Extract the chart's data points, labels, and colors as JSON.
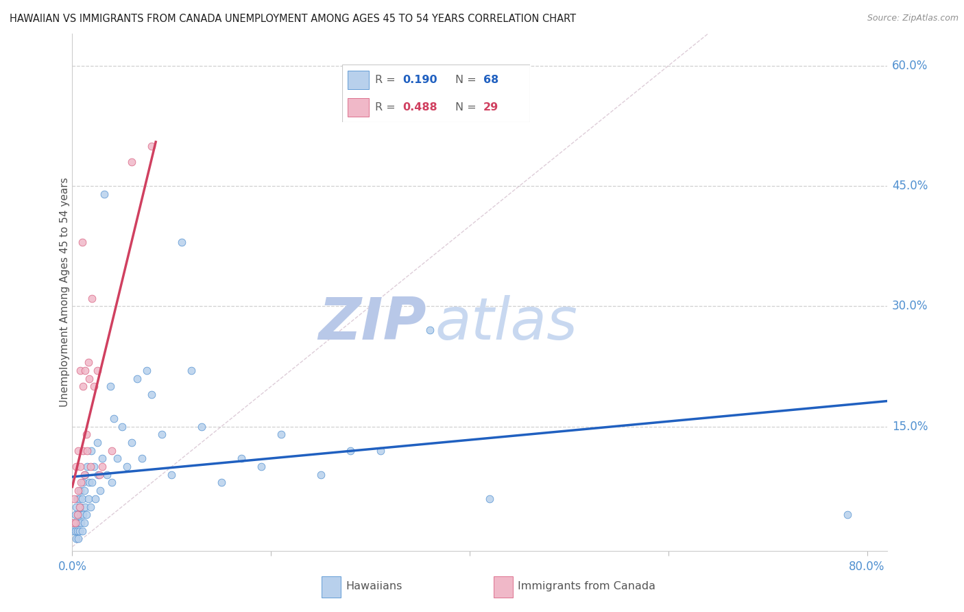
{
  "title": "HAWAIIAN VS IMMIGRANTS FROM CANADA UNEMPLOYMENT AMONG AGES 45 TO 54 YEARS CORRELATION CHART",
  "source": "Source: ZipAtlas.com",
  "ylabel": "Unemployment Among Ages 45 to 54 years",
  "xlim": [
    0.0,
    0.82
  ],
  "ylim": [
    -0.005,
    0.64
  ],
  "x_ticks": [
    0.0,
    0.2,
    0.4,
    0.6,
    0.8
  ],
  "x_tick_labels": [
    "0.0%",
    "",
    "",
    "",
    "80.0%"
  ],
  "y_ticks": [
    0.15,
    0.3,
    0.45,
    0.6
  ],
  "y_tick_labels": [
    "15.0%",
    "30.0%",
    "45.0%",
    "60.0%"
  ],
  "color_hawaiian_fill": "#b8d0ec",
  "color_hawaiian_edge": "#5090d0",
  "color_canada_fill": "#f0b8c8",
  "color_canada_edge": "#d86080",
  "color_trendline_hawaiian": "#2060c0",
  "color_trendline_canada": "#d04060",
  "color_diagonal": "#d0b8c8",
  "color_grid": "#c8c8c8",
  "color_axis_text": "#5090d0",
  "color_title": "#202020",
  "color_source": "#909090",
  "color_ylabel": "#505050",
  "color_watermark": "#ccd8f0",
  "watermark_zip": "ZIP",
  "watermark_atlas": "atlas",
  "legend_R_blue": "0.190",
  "legend_N_blue": "68",
  "legend_R_pink": "0.488",
  "legend_N_pink": "29",
  "hawaiian_x": [
    0.001,
    0.002,
    0.003,
    0.003,
    0.004,
    0.004,
    0.004,
    0.005,
    0.005,
    0.005,
    0.006,
    0.006,
    0.007,
    0.007,
    0.007,
    0.008,
    0.008,
    0.009,
    0.009,
    0.01,
    0.01,
    0.011,
    0.011,
    0.012,
    0.012,
    0.013,
    0.013,
    0.014,
    0.015,
    0.016,
    0.017,
    0.018,
    0.019,
    0.02,
    0.022,
    0.023,
    0.025,
    0.026,
    0.028,
    0.03,
    0.032,
    0.035,
    0.038,
    0.04,
    0.042,
    0.045,
    0.05,
    0.055,
    0.06,
    0.065,
    0.07,
    0.075,
    0.08,
    0.09,
    0.1,
    0.11,
    0.12,
    0.13,
    0.15,
    0.17,
    0.19,
    0.21,
    0.25,
    0.28,
    0.31,
    0.36,
    0.42,
    0.78
  ],
  "hawaiian_y": [
    0.02,
    0.03,
    0.02,
    0.04,
    0.01,
    0.03,
    0.05,
    0.02,
    0.03,
    0.06,
    0.01,
    0.04,
    0.03,
    0.06,
    0.02,
    0.05,
    0.07,
    0.03,
    0.04,
    0.02,
    0.06,
    0.04,
    0.08,
    0.03,
    0.07,
    0.05,
    0.09,
    0.04,
    0.1,
    0.06,
    0.08,
    0.05,
    0.12,
    0.08,
    0.1,
    0.06,
    0.13,
    0.09,
    0.07,
    0.11,
    0.44,
    0.09,
    0.2,
    0.08,
    0.16,
    0.11,
    0.15,
    0.1,
    0.13,
    0.21,
    0.11,
    0.22,
    0.19,
    0.14,
    0.09,
    0.38,
    0.22,
    0.15,
    0.08,
    0.11,
    0.1,
    0.14,
    0.09,
    0.12,
    0.12,
    0.27,
    0.06,
    0.04
  ],
  "canada_x": [
    0.001,
    0.002,
    0.003,
    0.004,
    0.005,
    0.006,
    0.006,
    0.007,
    0.008,
    0.008,
    0.009,
    0.01,
    0.011,
    0.011,
    0.012,
    0.013,
    0.014,
    0.015,
    0.016,
    0.017,
    0.018,
    0.02,
    0.022,
    0.025,
    0.027,
    0.03,
    0.04,
    0.06,
    0.08
  ],
  "canada_y": [
    0.03,
    0.06,
    0.03,
    0.1,
    0.04,
    0.07,
    0.12,
    0.05,
    0.22,
    0.1,
    0.08,
    0.38,
    0.12,
    0.2,
    0.09,
    0.22,
    0.14,
    0.12,
    0.23,
    0.21,
    0.1,
    0.31,
    0.2,
    0.22,
    0.09,
    0.1,
    0.12,
    0.48,
    0.5
  ]
}
